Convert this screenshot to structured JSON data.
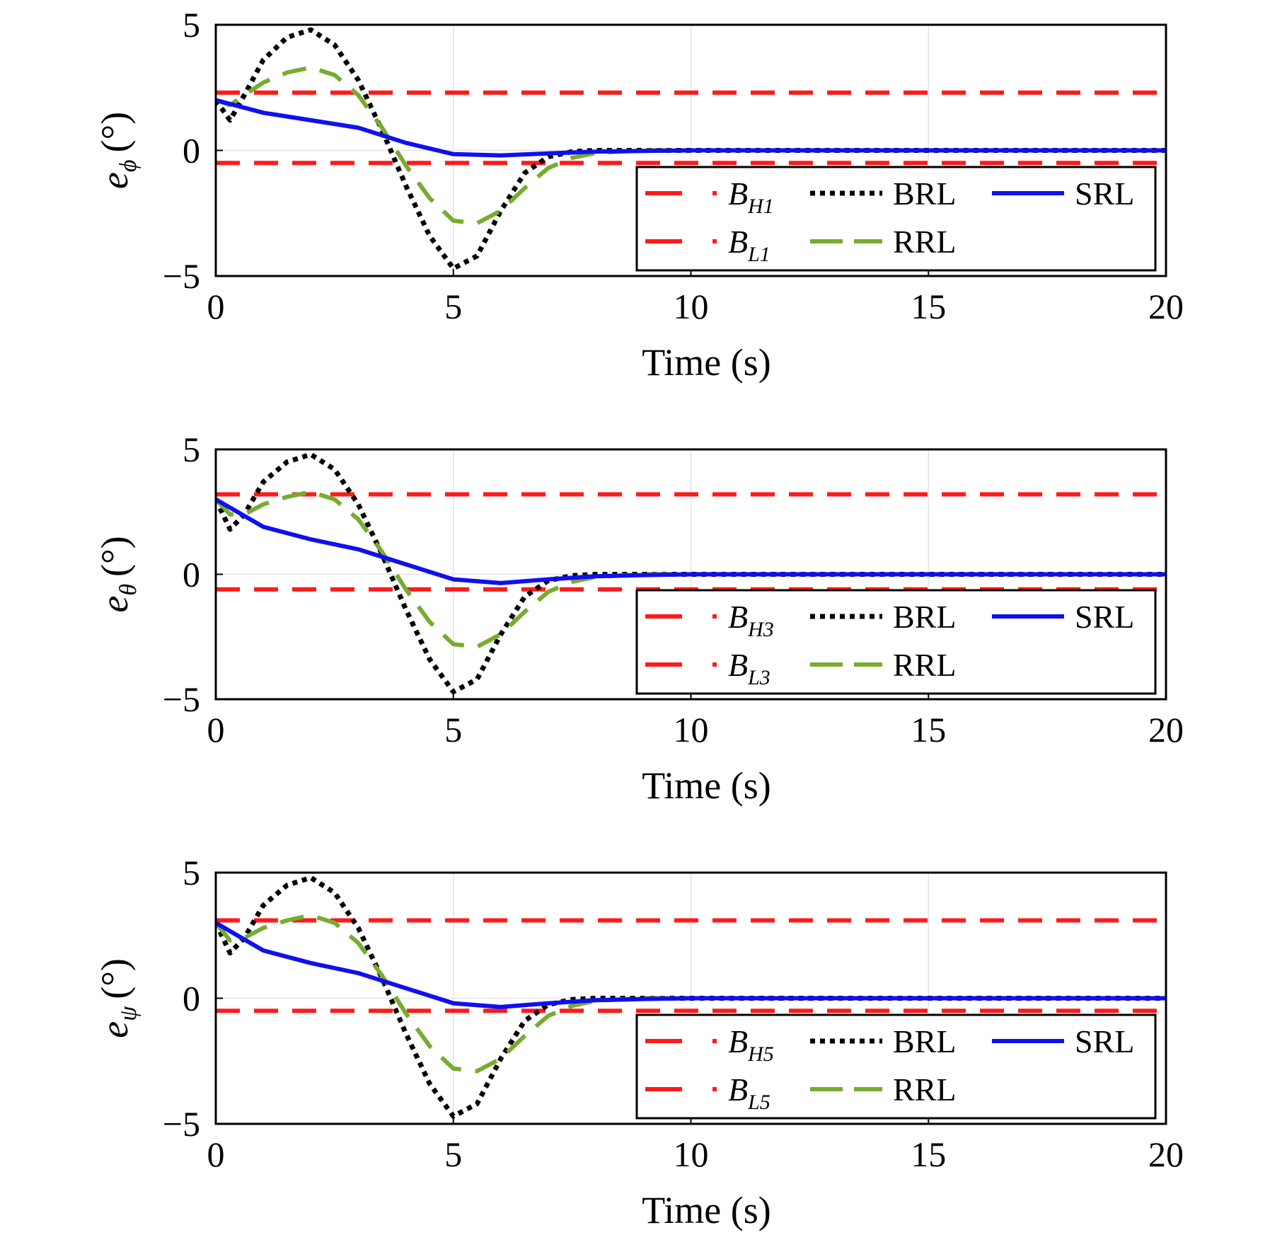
{
  "chart_data": [
    {
      "type": "line",
      "xlabel": "Time (s)",
      "ylabel": {
        "symbol": "e",
        "subscript": "ϕ",
        "unit": "(°)"
      },
      "xlim": [
        0,
        20
      ],
      "ylim": [
        -5,
        5
      ],
      "xticks": [
        0,
        5,
        10,
        15,
        20
      ],
      "yticks": [
        -5,
        0,
        5
      ],
      "xtick_labels": [
        "0",
        "5",
        "10",
        "15",
        "20"
      ],
      "ytick_labels": [
        "−5",
        "0",
        "5"
      ],
      "grid": true,
      "legend_position": "bottom-right",
      "legend_ncols": 3,
      "bounds": {
        "upper": 2.3,
        "lower": -0.5
      },
      "series": [
        {
          "name_main": "B",
          "name_sub": "H1",
          "style": "dashed",
          "color": "#ff1a1a",
          "x": [
            0,
            20
          ],
          "y": [
            2.3,
            2.3
          ]
        },
        {
          "name_main": "B",
          "name_sub": "L1",
          "style": "dashed",
          "color": "#ff1a1a",
          "x": [
            0,
            20
          ],
          "y": [
            -0.5,
            -0.5
          ]
        },
        {
          "name": "BRL",
          "style": "dotted",
          "color": "#000000",
          "x": [
            0,
            0.3,
            0.6,
            1.0,
            1.5,
            2.0,
            2.5,
            3.0,
            3.5,
            4.0,
            4.5,
            5.0,
            5.5,
            6.0,
            6.5,
            7.0,
            7.5,
            8.0,
            9.0,
            10.0,
            12.0,
            15.0,
            20.0
          ],
          "y": [
            2.0,
            1.2,
            2.2,
            3.6,
            4.5,
            4.8,
            4.2,
            2.8,
            0.8,
            -1.4,
            -3.4,
            -4.7,
            -4.2,
            -2.4,
            -0.9,
            -0.25,
            -0.05,
            0.0,
            0.0,
            0.0,
            0.0,
            0.0,
            0.0
          ]
        },
        {
          "name": "RRL",
          "style": "dashed",
          "color": "#77ac30",
          "x": [
            0,
            0.3,
            0.6,
            1.0,
            1.5,
            2.0,
            2.5,
            3.0,
            3.5,
            4.0,
            4.5,
            5.0,
            5.5,
            6.0,
            6.5,
            7.0,
            7.5,
            8.0,
            9.0,
            10.0,
            12.0,
            15.0,
            20.0
          ],
          "y": [
            2.0,
            1.8,
            2.2,
            2.7,
            3.1,
            3.3,
            3.0,
            2.2,
            0.9,
            -0.6,
            -1.9,
            -2.8,
            -2.9,
            -2.4,
            -1.5,
            -0.7,
            -0.3,
            -0.1,
            0.0,
            0.0,
            0.0,
            0.0,
            0.0
          ]
        },
        {
          "name": "SRL",
          "style": "solid",
          "color": "#1010ee",
          "x": [
            0,
            1.0,
            2.0,
            3.0,
            4.0,
            5.0,
            6.0,
            7.0,
            8.0,
            9.0,
            10.0,
            12.0,
            15.0,
            20.0
          ],
          "y": [
            2.0,
            1.5,
            1.2,
            0.9,
            0.3,
            -0.15,
            -0.2,
            -0.12,
            -0.05,
            -0.02,
            0.0,
            0.0,
            0.0,
            0.0
          ]
        }
      ]
    },
    {
      "type": "line",
      "xlabel": "Time (s)",
      "ylabel": {
        "symbol": "e",
        "subscript": "θ",
        "unit": "(°)"
      },
      "xlim": [
        0,
        20
      ],
      "ylim": [
        -5,
        5
      ],
      "xticks": [
        0,
        5,
        10,
        15,
        20
      ],
      "yticks": [
        -5,
        0,
        5
      ],
      "xtick_labels": [
        "0",
        "5",
        "10",
        "15",
        "20"
      ],
      "ytick_labels": [
        "−5",
        "0",
        "5"
      ],
      "grid": true,
      "legend_position": "bottom-right",
      "legend_ncols": 3,
      "bounds": {
        "upper": 3.2,
        "lower": -0.6
      },
      "series": [
        {
          "name_main": "B",
          "name_sub": "H3",
          "style": "dashed",
          "color": "#ff1a1a",
          "x": [
            0,
            20
          ],
          "y": [
            3.2,
            3.2
          ]
        },
        {
          "name_main": "B",
          "name_sub": "L3",
          "style": "dashed",
          "color": "#ff1a1a",
          "x": [
            0,
            20
          ],
          "y": [
            -0.6,
            -0.6
          ]
        },
        {
          "name": "BRL",
          "style": "dotted",
          "color": "#000000",
          "x": [
            0,
            0.3,
            0.6,
            1.0,
            1.5,
            2.0,
            2.5,
            3.0,
            3.5,
            4.0,
            4.5,
            5.0,
            5.5,
            6.0,
            6.5,
            7.0,
            7.5,
            8.0,
            9.0,
            10.0,
            12.0,
            15.0,
            20.0
          ],
          "y": [
            3.0,
            1.8,
            2.4,
            3.7,
            4.5,
            4.8,
            4.2,
            2.8,
            0.8,
            -1.4,
            -3.4,
            -4.7,
            -4.2,
            -2.4,
            -0.9,
            -0.25,
            -0.05,
            0.0,
            0.0,
            0.0,
            0.0,
            0.0,
            0.0
          ]
        },
        {
          "name": "RRL",
          "style": "dashed",
          "color": "#77ac30",
          "x": [
            0,
            0.3,
            0.6,
            1.0,
            1.5,
            2.0,
            2.5,
            3.0,
            3.5,
            4.0,
            4.5,
            5.0,
            5.5,
            6.0,
            6.5,
            7.0,
            7.5,
            8.0,
            9.0,
            10.0,
            12.0,
            15.0,
            20.0
          ],
          "y": [
            3.0,
            2.4,
            2.4,
            2.8,
            3.1,
            3.3,
            3.0,
            2.2,
            0.9,
            -0.6,
            -1.9,
            -2.8,
            -2.9,
            -2.4,
            -1.5,
            -0.7,
            -0.3,
            -0.1,
            0.0,
            0.0,
            0.0,
            0.0,
            0.0
          ]
        },
        {
          "name": "SRL",
          "style": "solid",
          "color": "#1010ee",
          "x": [
            0,
            1.0,
            2.0,
            3.0,
            4.0,
            5.0,
            6.0,
            7.0,
            8.0,
            9.0,
            10.0,
            12.0,
            15.0,
            20.0
          ],
          "y": [
            3.0,
            1.9,
            1.4,
            1.0,
            0.4,
            -0.2,
            -0.35,
            -0.2,
            -0.08,
            -0.03,
            0.0,
            0.0,
            0.0,
            0.0
          ]
        }
      ]
    },
    {
      "type": "line",
      "xlabel": "Time (s)",
      "ylabel": {
        "symbol": "e",
        "subscript": "ψ",
        "unit": "(°)"
      },
      "xlim": [
        0,
        20
      ],
      "ylim": [
        -5,
        5
      ],
      "xticks": [
        0,
        5,
        10,
        15,
        20
      ],
      "yticks": [
        -5,
        0,
        5
      ],
      "xtick_labels": [
        "0",
        "5",
        "10",
        "15",
        "20"
      ],
      "ytick_labels": [
        "−5",
        "0",
        "5"
      ],
      "grid": true,
      "legend_position": "bottom-right",
      "legend_ncols": 3,
      "bounds": {
        "upper": 3.1,
        "lower": -0.5
      },
      "series": [
        {
          "name_main": "B",
          "name_sub": "H5",
          "style": "dashed",
          "color": "#ff1a1a",
          "x": [
            0,
            20
          ],
          "y": [
            3.1,
            3.1
          ]
        },
        {
          "name_main": "B",
          "name_sub": "L5",
          "style": "dashed",
          "color": "#ff1a1a",
          "x": [
            0,
            20
          ],
          "y": [
            -0.5,
            -0.5
          ]
        },
        {
          "name": "BRL",
          "style": "dotted",
          "color": "#000000",
          "x": [
            0,
            0.3,
            0.6,
            1.0,
            1.5,
            2.0,
            2.5,
            3.0,
            3.5,
            4.0,
            4.5,
            5.0,
            5.5,
            6.0,
            6.5,
            7.0,
            7.5,
            8.0,
            9.0,
            10.0,
            12.0,
            15.0,
            20.0
          ],
          "y": [
            3.0,
            1.8,
            2.4,
            3.7,
            4.5,
            4.8,
            4.2,
            2.8,
            0.8,
            -1.4,
            -3.4,
            -4.7,
            -4.2,
            -2.4,
            -0.9,
            -0.25,
            -0.05,
            0.0,
            0.0,
            0.0,
            0.0,
            0.0,
            0.0
          ]
        },
        {
          "name": "RRL",
          "style": "dashed",
          "color": "#77ac30",
          "x": [
            0,
            0.3,
            0.6,
            1.0,
            1.5,
            2.0,
            2.5,
            3.0,
            3.5,
            4.0,
            4.5,
            5.0,
            5.5,
            6.0,
            6.5,
            7.0,
            7.5,
            8.0,
            9.0,
            10.0,
            12.0,
            15.0,
            20.0
          ],
          "y": [
            3.0,
            2.3,
            2.4,
            2.8,
            3.1,
            3.3,
            3.0,
            2.2,
            0.9,
            -0.6,
            -1.9,
            -2.8,
            -2.9,
            -2.4,
            -1.5,
            -0.7,
            -0.3,
            -0.1,
            0.0,
            0.0,
            0.0,
            0.0,
            0.0
          ]
        },
        {
          "name": "SRL",
          "style": "solid",
          "color": "#1010ee",
          "x": [
            0,
            1.0,
            2.0,
            3.0,
            4.0,
            5.0,
            6.0,
            7.0,
            8.0,
            9.0,
            10.0,
            12.0,
            15.0,
            20.0
          ],
          "y": [
            3.0,
            1.9,
            1.4,
            1.0,
            0.4,
            -0.2,
            -0.35,
            -0.2,
            -0.08,
            -0.03,
            0.0,
            0.0,
            0.0,
            0.0
          ]
        }
      ]
    }
  ]
}
